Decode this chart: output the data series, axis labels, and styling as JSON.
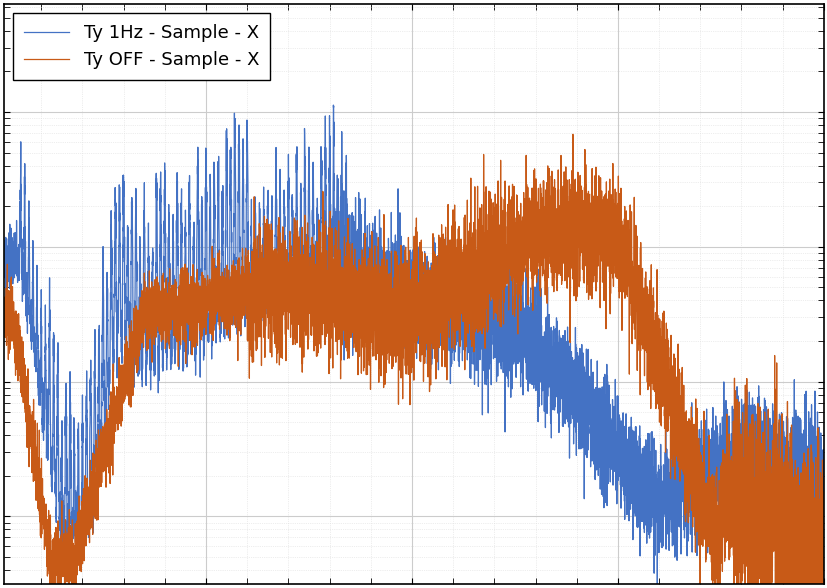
{
  "title": "",
  "xlabel": "",
  "ylabel": "",
  "line1_label": "Ty 1Hz - Sample - X",
  "line2_label": "Ty OFF - Sample - X",
  "line1_color": "#4472C4",
  "line2_color": "#C85A17",
  "background_color": "#ffffff",
  "grid_color": "#cccccc",
  "xmin": 1,
  "xmax": 200,
  "legend_loc": "upper left",
  "legend_fontsize": 13,
  "tick_fontsize": 11,
  "figsize": [
    8.28,
    5.88
  ],
  "dpi": 100
}
